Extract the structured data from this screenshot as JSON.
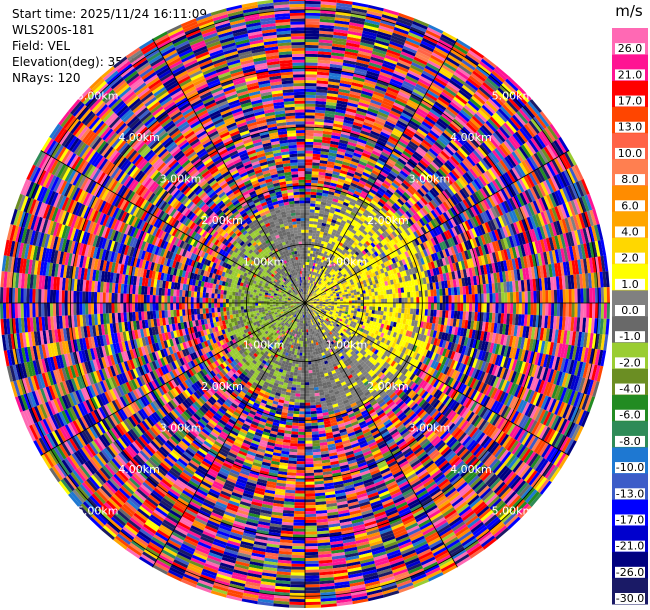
{
  "header": {
    "start_time": "Start time: 2025/11/24 16:11:09",
    "instrument": "WLS200s-181",
    "field": "Field: VEL",
    "elevation": "Elevation(deg): 35.00",
    "nrays": "NRays: 120"
  },
  "chart_data": {
    "type": "heatmap",
    "projection": "polar-ppi",
    "field": "VEL",
    "units": "m/s",
    "nrays": 120,
    "max_range_km": 5.2,
    "range_rings_km": [
      1.0,
      2.0,
      3.0,
      4.0,
      5.0
    ],
    "ring_labels": [
      "1.00km",
      "2.00km",
      "3.00km",
      "4.00km",
      "5.00km"
    ],
    "spokes_deg": [
      0,
      30,
      60,
      90,
      120,
      150,
      180,
      210,
      240,
      270,
      300,
      330
    ],
    "colorbar": {
      "label": "m/s",
      "boundaries": [
        -30.0,
        -26.0,
        -21.0,
        -17.0,
        -13.0,
        -10.0,
        -8.0,
        -6.0,
        -4.0,
        -2.0,
        -1.0,
        0.0,
        1.0,
        2.0,
        4.0,
        6.0,
        8.0,
        10.0,
        13.0,
        17.0,
        21.0,
        26.0,
        30.0
      ],
      "tick_labels": [
        "-30.0",
        "-26.0",
        "-21.0",
        "-17.0",
        "-13.0",
        "-10.0",
        "-8.0",
        "-6.0",
        "-4.0",
        "-2.0",
        "-1.0",
        "0.0",
        "1.0",
        "2.0",
        "4.0",
        "6.0",
        "8.0",
        "10.0",
        "13.0",
        "17.0",
        "21.0",
        "26.0"
      ],
      "colors": [
        "#1a1a66",
        "#000080",
        "#0000cd",
        "#0000ff",
        "#3c5cc8",
        "#1e78d2",
        "#2e8b57",
        "#228b22",
        "#6b8e23",
        "#9acd32",
        "#696969",
        "#808080",
        "#ffff00",
        "#ffd700",
        "#ffa500",
        "#ff8c00",
        "#ff7f50",
        "#ff6347",
        "#ff4500",
        "#ff0000",
        "#ff1493",
        "#ff69b4"
      ]
    }
  }
}
